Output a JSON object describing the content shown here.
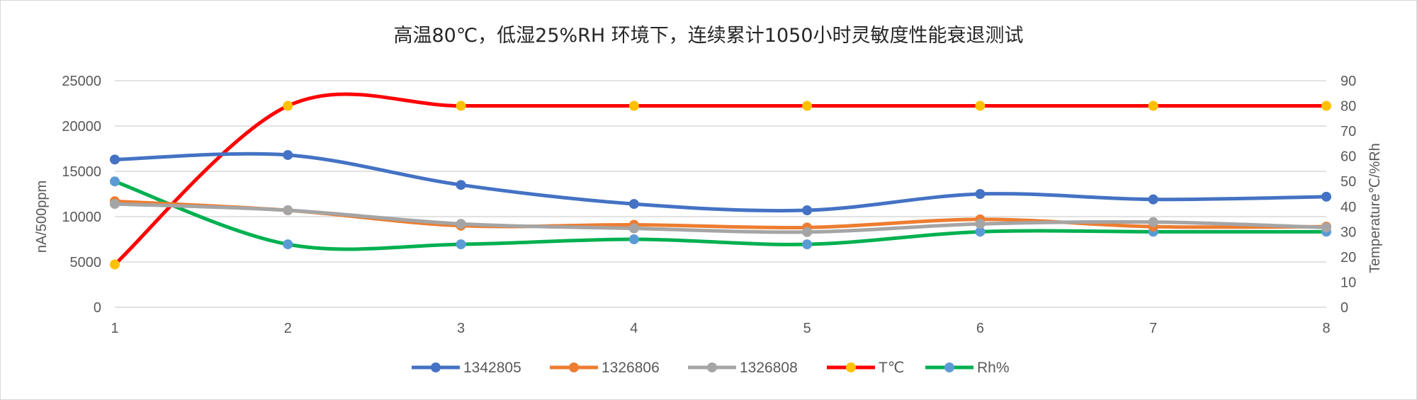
{
  "chart_data": {
    "type": "line",
    "title": "高温80℃，低湿25%RH 环境下，连续累计1050小时灵敏度性能衰退测试",
    "x": [
      1,
      2,
      3,
      4,
      5,
      6,
      7,
      8
    ],
    "y_left": {
      "label": "nA/500ppm",
      "range": [
        0,
        25000
      ],
      "ticks": [
        0,
        5000,
        10000,
        15000,
        20000,
        25000
      ]
    },
    "y_right": {
      "label": "Temperature℃/%Rh",
      "range": [
        0,
        90
      ],
      "ticks": [
        0,
        10,
        20,
        30,
        40,
        50,
        60,
        70,
        80,
        90
      ]
    },
    "grid": "horizontal",
    "legend_position": "bottom",
    "series": [
      {
        "name": "1342805",
        "axis": "left",
        "color": "#4472c4",
        "marker_color": "#4472c4",
        "values": [
          16300,
          16800,
          13500,
          11400,
          10700,
          12500,
          11900,
          12200
        ]
      },
      {
        "name": "1326806",
        "axis": "left",
        "color": "#ed7d31",
        "marker_color": "#ed7d31",
        "values": [
          11700,
          10700,
          9000,
          9100,
          8800,
          9700,
          8900,
          8900
        ]
      },
      {
        "name": "1326808",
        "axis": "left",
        "color": "#a5a5a5",
        "marker_color": "#a5a5a5",
        "values": [
          11400,
          10700,
          9200,
          8700,
          8300,
          9200,
          9400,
          8800
        ]
      },
      {
        "name": "T℃",
        "axis": "right",
        "color": "#ff0000",
        "marker_color": "#ffc000",
        "values": [
          17,
          80,
          80,
          80,
          80,
          80,
          80,
          80
        ]
      },
      {
        "name": "Rh%",
        "axis": "right",
        "color": "#00b050",
        "marker_color": "#5b9bd5",
        "values": [
          50,
          25,
          25,
          27,
          25,
          30,
          30,
          30
        ]
      }
    ]
  }
}
